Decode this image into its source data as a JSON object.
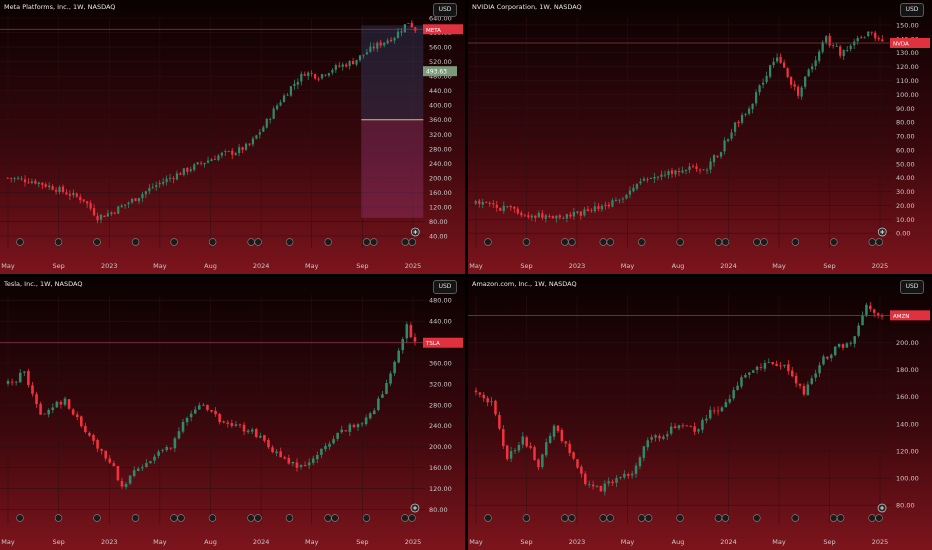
{
  "currency_label": "USD",
  "colors": {
    "up": "#2f8a6a",
    "down": "#f2323f",
    "grid": "#2b1013",
    "axis_text": "#c9c9c9"
  },
  "chart_data": [
    {
      "type": "candlestick",
      "title": "Meta Platforms, Inc., 1W, NASDAQ",
      "ticker": "META",
      "price_label": "",
      "yticks": [
        "640.00",
        "600.00",
        "560.00",
        "520.00",
        "480.00",
        "440.00",
        "400.00",
        "360.00",
        "320.00",
        "280.00",
        "240.00",
        "200.00",
        "160.00",
        "120.00",
        "80.00",
        "40.00"
      ],
      "ylim": [
        40,
        640
      ],
      "xticks": [
        "May",
        "Sep",
        "2023",
        "May",
        "Aug",
        "2024",
        "May",
        "Sep",
        "2025"
      ],
      "key_price": 609,
      "extra_label": "493.63",
      "extra_price": 493.63,
      "anchors": [
        [
          0,
          200
        ],
        [
          8,
          190
        ],
        [
          14,
          170
        ],
        [
          22,
          140
        ],
        [
          26,
          92
        ],
        [
          30,
          105
        ],
        [
          36,
          138
        ],
        [
          42,
          175
        ],
        [
          48,
          205
        ],
        [
          56,
          240
        ],
        [
          62,
          265
        ],
        [
          66,
          272
        ],
        [
          70,
          290
        ],
        [
          74,
          340
        ],
        [
          78,
          400
        ],
        [
          82,
          450
        ],
        [
          86,
          490
        ],
        [
          90,
          480
        ],
        [
          94,
          500
        ],
        [
          100,
          520
        ],
        [
          106,
          560
        ],
        [
          112,
          590
        ],
        [
          116,
          630
        ],
        [
          118,
          609
        ]
      ],
      "position_tool": {
        "top": 620,
        "entry": 360,
        "bottom": 90
      }
    },
    {
      "type": "candlestick",
      "title": "NVIDIA Corporation, 1W, NASDAQ",
      "ticker": "NVDA",
      "price_label": "",
      "yticks": [
        "150.00",
        "140.00",
        "130.00",
        "120.00",
        "110.00",
        "100.00",
        "90.00",
        "80.00",
        "70.00",
        "60.00",
        "50.00",
        "40.00",
        "30.00",
        "20.00",
        "10.00",
        "0.00"
      ],
      "ylim": [
        -2,
        155
      ],
      "xticks": [
        "May",
        "Sep",
        "2023",
        "May",
        "Aug",
        "2024",
        "May",
        "Sep",
        "2025"
      ],
      "key_price": 137,
      "anchors": [
        [
          0,
          22
        ],
        [
          8,
          18
        ],
        [
          14,
          14
        ],
        [
          22,
          12
        ],
        [
          26,
          12
        ],
        [
          30,
          14
        ],
        [
          36,
          19
        ],
        [
          42,
          27
        ],
        [
          48,
          38
        ],
        [
          54,
          44
        ],
        [
          60,
          46
        ],
        [
          66,
          48
        ],
        [
          70,
          60
        ],
        [
          74,
          78
        ],
        [
          78,
          90
        ],
        [
          82,
          110
        ],
        [
          86,
          128
        ],
        [
          88,
          118
        ],
        [
          92,
          100
        ],
        [
          96,
          122
        ],
        [
          100,
          140
        ],
        [
          104,
          130
        ],
        [
          108,
          138
        ],
        [
          112,
          144
        ],
        [
          116,
          137
        ]
      ]
    },
    {
      "type": "candlestick",
      "title": "Tesla, Inc., 1W, NASDAQ",
      "ticker": "TSLA",
      "price_label": "",
      "yticks": [
        "480.00",
        "440.00",
        "400.00",
        "360.00",
        "320.00",
        "280.00",
        "240.00",
        "200.00",
        "160.00",
        "120.00",
        "80.00"
      ],
      "ylim": [
        75,
        490
      ],
      "xticks": [
        "May",
        "Sep",
        "2023",
        "May",
        "Aug",
        "2024",
        "May",
        "Sep",
        "2025"
      ],
      "key_price": 398.74,
      "anchors": [
        [
          0,
          320
        ],
        [
          4,
          340
        ],
        [
          8,
          260
        ],
        [
          14,
          290
        ],
        [
          18,
          240
        ],
        [
          22,
          200
        ],
        [
          26,
          160
        ],
        [
          28,
          120
        ],
        [
          32,
          160
        ],
        [
          36,
          180
        ],
        [
          40,
          200
        ],
        [
          44,
          255
        ],
        [
          48,
          280
        ],
        [
          52,
          250
        ],
        [
          56,
          240
        ],
        [
          60,
          230
        ],
        [
          64,
          200
        ],
        [
          68,
          175
        ],
        [
          72,
          160
        ],
        [
          76,
          185
        ],
        [
          80,
          220
        ],
        [
          84,
          240
        ],
        [
          88,
          250
        ],
        [
          92,
          300
        ],
        [
          96,
          380
        ],
        [
          98,
          430
        ],
        [
          100,
          398.74
        ]
      ]
    },
    {
      "type": "candlestick",
      "title": "Amazon.com, Inc., 1W, NASDAQ",
      "ticker": "AMZN",
      "price_label": "",
      "yticks": [
        "220.00",
        "200.00",
        "180.00",
        "160.00",
        "140.00",
        "120.00",
        "100.00",
        "80.00"
      ],
      "ylim": [
        75,
        235
      ],
      "xticks": [
        "May",
        "Sep",
        "2023",
        "May",
        "Aug",
        "2024",
        "May",
        "Sep",
        "2025"
      ],
      "key_price": 220,
      "anchors": [
        [
          0,
          165
        ],
        [
          4,
          155
        ],
        [
          8,
          115
        ],
        [
          12,
          130
        ],
        [
          16,
          110
        ],
        [
          20,
          138
        ],
        [
          24,
          120
        ],
        [
          28,
          95
        ],
        [
          32,
          92
        ],
        [
          36,
          100
        ],
        [
          40,
          105
        ],
        [
          44,
          128
        ],
        [
          48,
          132
        ],
        [
          52,
          140
        ],
        [
          56,
          135
        ],
        [
          60,
          148
        ],
        [
          64,
          155
        ],
        [
          68,
          175
        ],
        [
          72,
          182
        ],
        [
          76,
          186
        ],
        [
          80,
          180
        ],
        [
          84,
          162
        ],
        [
          88,
          185
        ],
        [
          92,
          196
        ],
        [
          96,
          200
        ],
        [
          100,
          228
        ],
        [
          104,
          220
        ]
      ]
    }
  ]
}
